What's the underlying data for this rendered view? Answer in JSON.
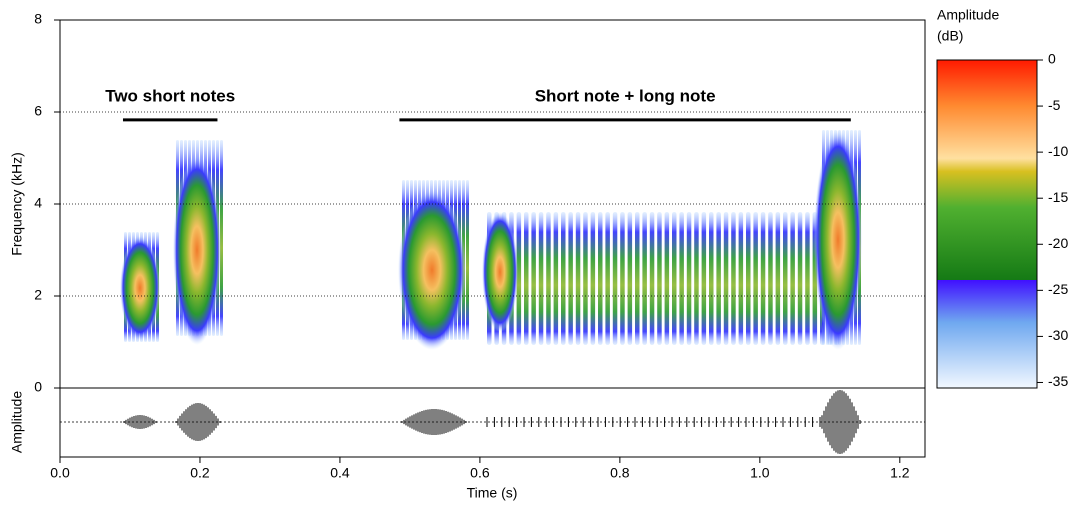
{
  "chart_data": {
    "type": "spectrogram",
    "xlabel": "Time (s)",
    "ylabel": "Frequency (kHz)",
    "y2label": "Amplitude",
    "xlim": [
      0,
      1.236
    ],
    "xticks": [
      {
        "value": 0,
        "label": "0.0"
      },
      0.2,
      0.4,
      0.6,
      0.8,
      {
        "value": 1,
        "label": "1.0"
      },
      1.2
    ],
    "ylim": [
      0,
      8
    ],
    "yticks": [
      0,
      2,
      4,
      6,
      8
    ],
    "grid": true,
    "annotations": [
      {
        "text": "Two short notes",
        "x": [
          0.09,
          0.225
        ],
        "y": 5.83
      },
      {
        "text": "Short note + long note",
        "x": [
          0.485,
          1.13
        ],
        "y": 5.83
      }
    ],
    "colorbar": {
      "title": [
        "Amplitude",
        "(dB)"
      ],
      "lim": [
        -35.6,
        0
      ],
      "ticks": [
        0,
        -5,
        -10,
        -15,
        -20,
        -25,
        -30,
        -35
      ]
    }
  }
}
